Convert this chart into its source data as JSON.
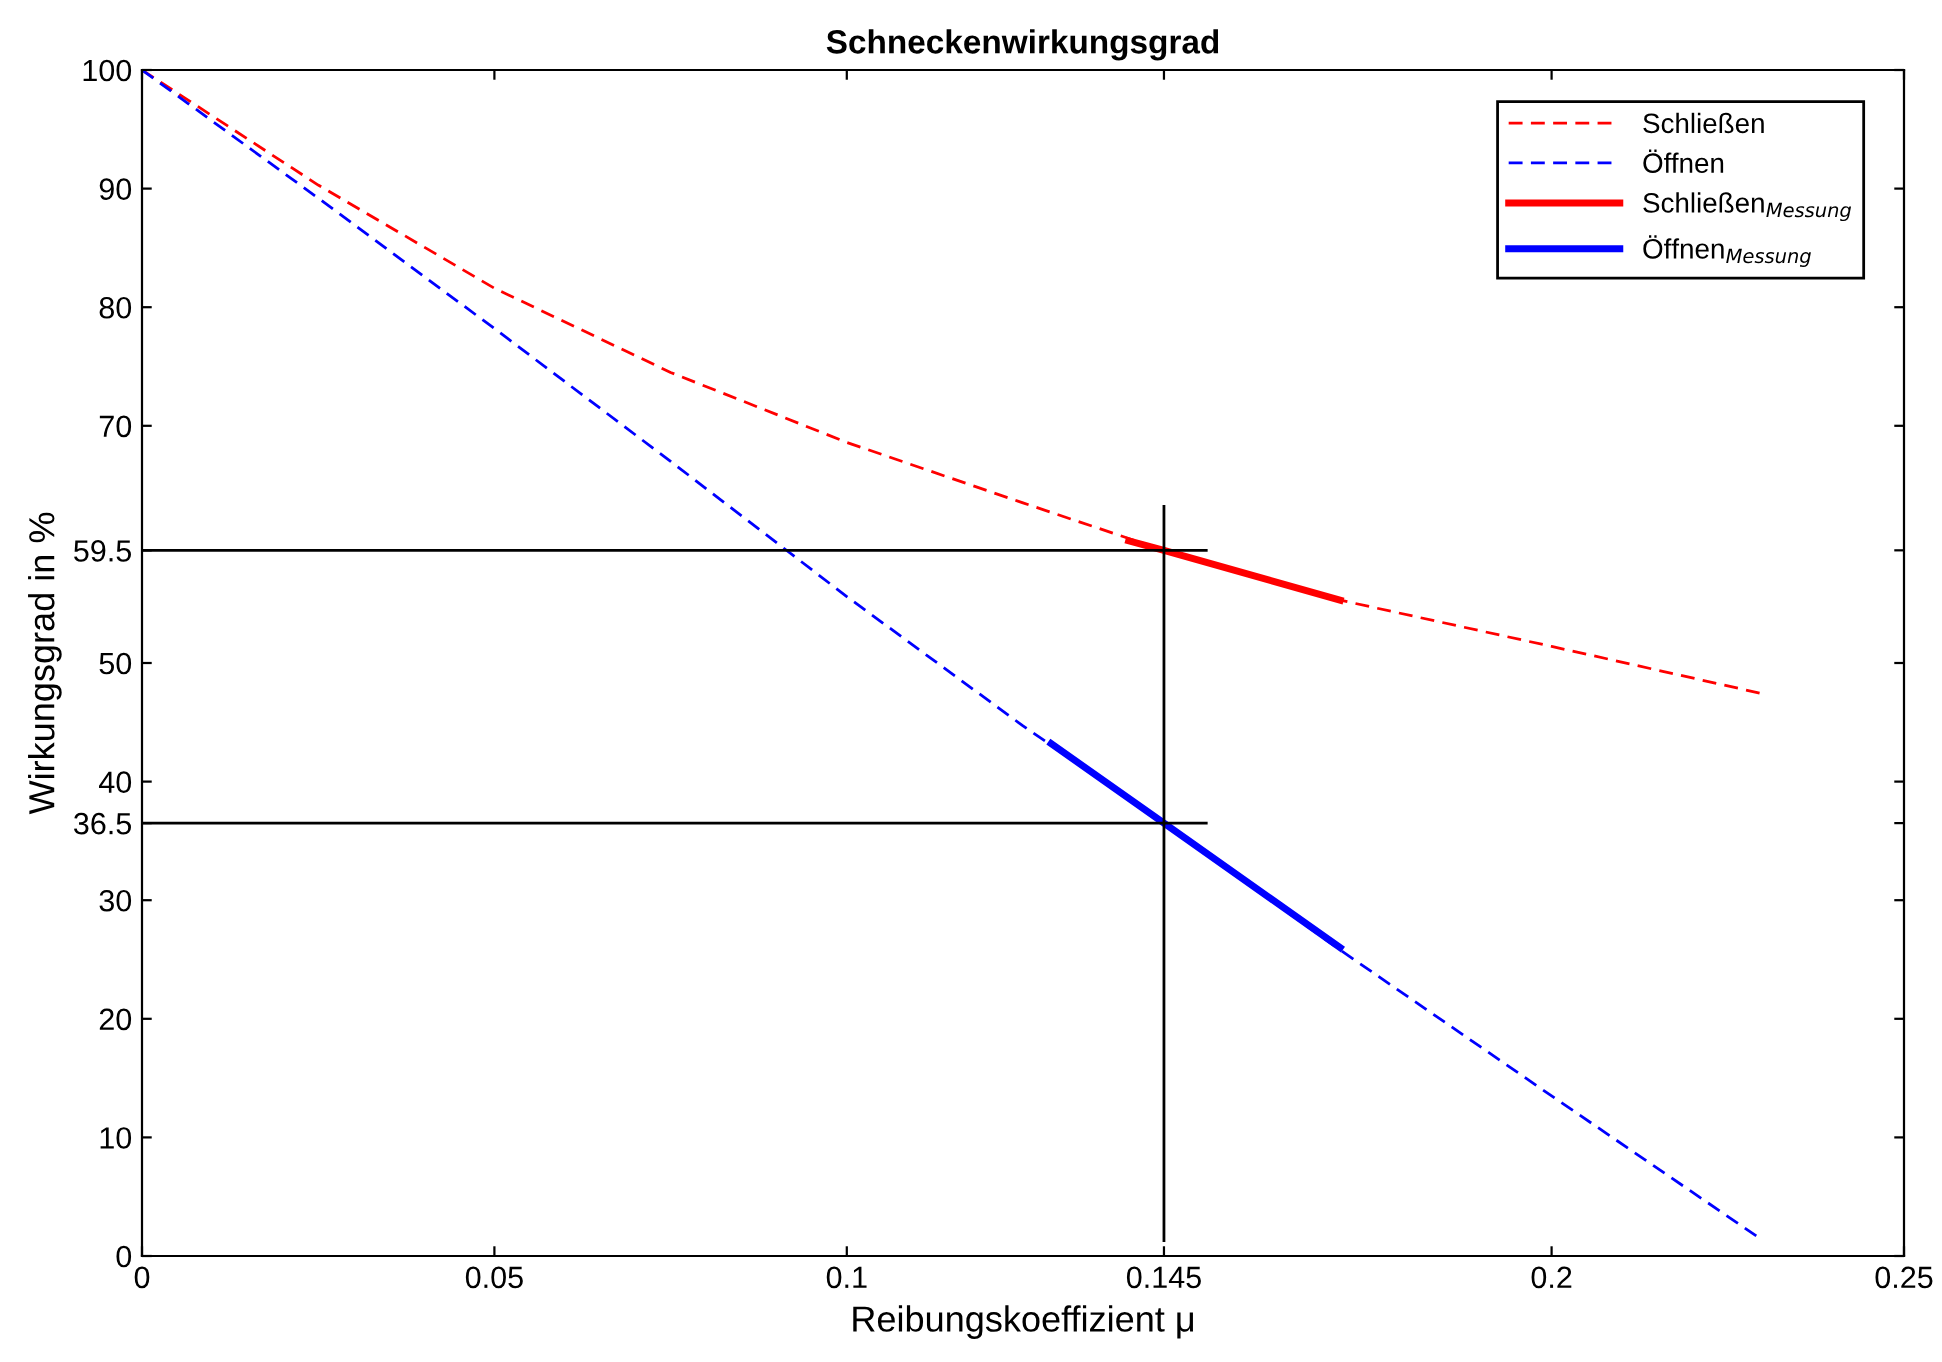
{
  "chart_data": {
    "type": "line",
    "title": "Schneckenwirkungsgrad",
    "xlabel": "Reibungskoeffizient μ",
    "ylabel": "Wirkungsgrad in %",
    "xlim": [
      0,
      0.25
    ],
    "ylim": [
      0,
      100
    ],
    "xticks": [
      0,
      0.05,
      0.1,
      0.145,
      0.2,
      0.25
    ],
    "yticks": [
      0,
      10,
      20,
      30,
      36.5,
      40,
      50,
      59.5,
      70,
      80,
      90,
      100
    ],
    "grid": false,
    "legend": "top right",
    "marker": "none",
    "series": [
      {
        "name": "Schließen",
        "color": "#ff0000",
        "line_style": "dashed",
        "x": [
          0,
          0.025,
          0.05,
          0.075,
          0.1,
          0.125,
          0.145,
          0.17,
          0.2,
          0.23
        ],
        "values": [
          100,
          90.3,
          81.6,
          74.5,
          68.6,
          63.5,
          59.5,
          55.3,
          51.4,
          47.4
        ]
      },
      {
        "name": "Öffnen",
        "color": "#0000ff",
        "line_style": "dashed",
        "x": [
          0,
          0.025,
          0.05,
          0.075,
          0.1,
          0.125,
          0.145,
          0.17,
          0.2,
          0.23
        ],
        "values": [
          100,
          89.2,
          78.2,
          67.0,
          55.6,
          44.7,
          36.5,
          25.8,
          13.5,
          1.3
        ]
      },
      {
        "name": "Schließen$_{Messung}$",
        "color": "#ff0000",
        "line_style": "solid",
        "x": [
          0.14,
          0.145,
          0.17
        ],
        "values": [
          60.3,
          59.5,
          55.3
        ]
      },
      {
        "name": "Öffnen$_{Messung}$",
        "color": "#0000ff",
        "line_style": "solid",
        "x": [
          0.129,
          0.145,
          0.17
        ],
        "values": [
          43.2,
          36.5,
          26.0
        ]
      },
      {
        "color": "#000000",
        "line_style": "solid",
        "x": [
          0,
          0.151
        ],
        "values": [
          59.5,
          59.5
        ]
      },
      {
        "color": "#000000",
        "line_style": "solid",
        "x": [
          0,
          0.151
        ],
        "values": [
          36.5,
          36.5
        ]
      },
      {
        "color": "#000000",
        "line_style": "solid",
        "x": [
          0.145,
          0.145
        ],
        "values": [
          1.3,
          63.2
        ]
      }
    ]
  }
}
